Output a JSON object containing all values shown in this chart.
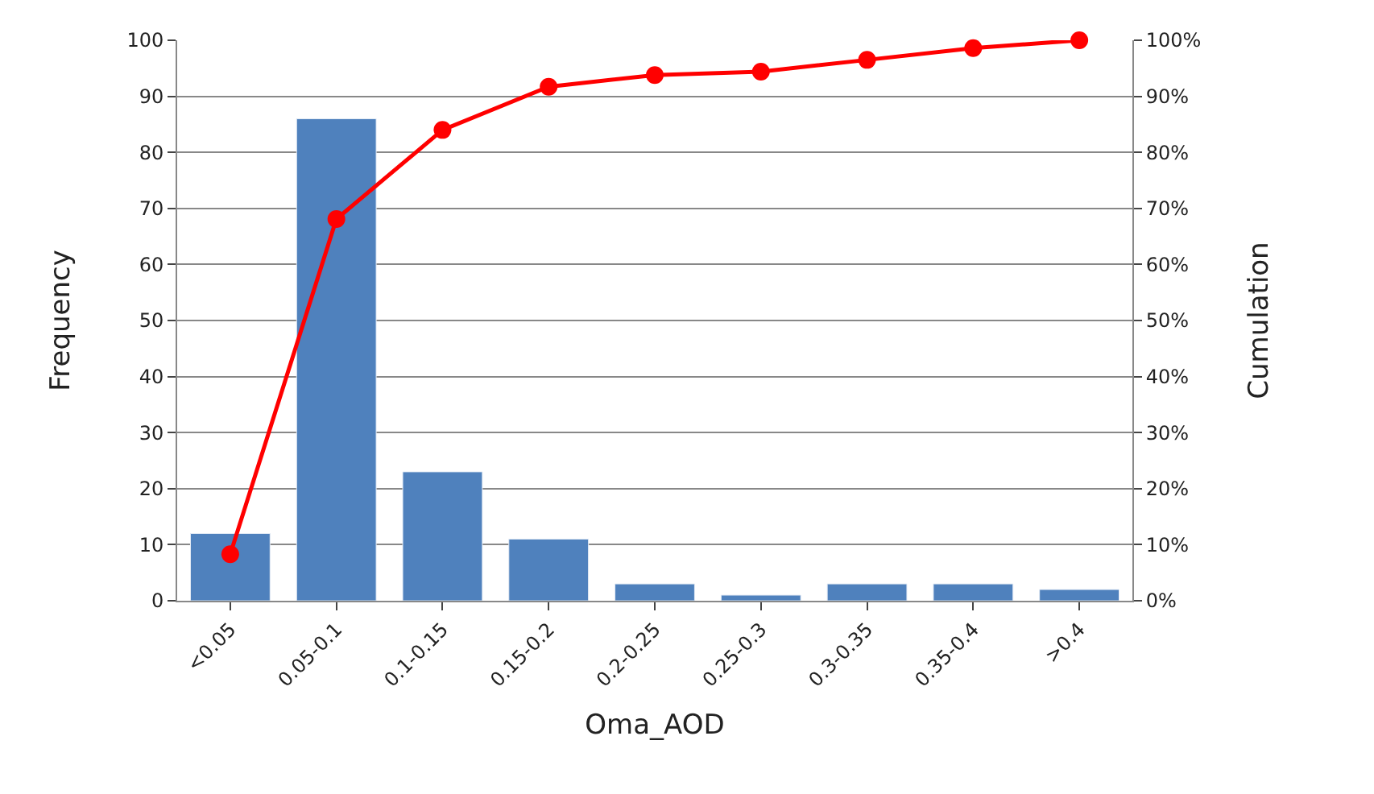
{
  "chart_data": {
    "type": "bar",
    "xlabel": "Oma_AOD",
    "ylabel": "Frequency",
    "y2label": "Cumulation",
    "categories": [
      "<0.05",
      "0.05-0.1",
      "0.1-0.15",
      "0.15-0.2",
      "0.2-0.25",
      "0.25-0.3",
      "0.3-0.35",
      "0.35-0.4",
      ">0.4"
    ],
    "series": [
      {
        "color": "#4f81bd",
        "values": [
          12,
          86,
          23,
          11,
          3,
          1,
          3,
          3,
          2
        ]
      },
      {
        "type": "line",
        "axis": "y2",
        "color": "#ff0000",
        "marker": "circle",
        "values": [
          8.3,
          68.1,
          84.0,
          91.7,
          93.8,
          94.4,
          96.5,
          98.6,
          100
        ]
      }
    ],
    "ylim": [
      0,
      100
    ],
    "yticks": [
      0,
      10,
      20,
      30,
      40,
      50,
      60,
      70,
      80,
      90,
      100
    ],
    "y2lim": [
      0,
      100
    ],
    "y2ticks": [
      {
        "value": 0,
        "label": "0%"
      },
      {
        "value": 10,
        "label": "10%"
      },
      {
        "value": 20,
        "label": "20%"
      },
      {
        "value": 30,
        "label": "30%"
      },
      {
        "value": 40,
        "label": "40%"
      },
      {
        "value": 50,
        "label": "50%"
      },
      {
        "value": 60,
        "label": "60%"
      },
      {
        "value": 70,
        "label": "70%"
      },
      {
        "value": 80,
        "label": "80%"
      },
      {
        "value": 90,
        "label": "90%"
      },
      {
        "value": 100,
        "label": "100%"
      }
    ],
    "grid": "y"
  }
}
